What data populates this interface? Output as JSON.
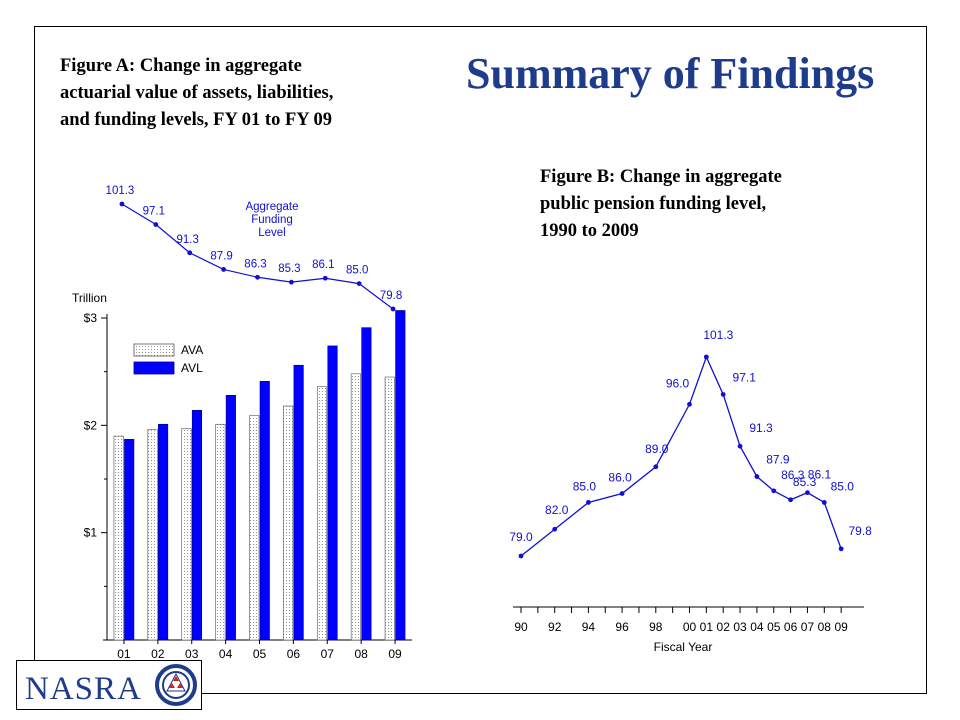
{
  "title": "Summary of Findings",
  "figure_a": {
    "caption_lines": [
      "Figure A: Change in aggregate",
      "actuarial value of assets, liabilities,",
      "and funding levels, FY 01 to FY 09"
    ]
  },
  "figure_b": {
    "caption_lines": [
      "Figure B: Change in aggregate",
      "public pension funding level,",
      "1990 to 2009"
    ]
  },
  "logo": {
    "text": "NASRA",
    "icon": "nasra-triangle-emblem-icon"
  },
  "chart_data": [
    {
      "type": "bar",
      "categories": [
        "01",
        "02",
        "03",
        "04",
        "05",
        "06",
        "07",
        "08",
        "09"
      ],
      "ylabel": "Trillion",
      "ylim": [
        0,
        3
      ],
      "yticks": [
        1,
        2,
        3
      ],
      "ytick_labels": [
        "$1",
        "$2",
        "$3"
      ],
      "series": [
        {
          "name": "AVA",
          "values": [
            1.9,
            1.96,
            1.97,
            2.01,
            2.09,
            2.18,
            2.36,
            2.48,
            2.45
          ]
        },
        {
          "name": "AVL",
          "values": [
            1.87,
            2.01,
            2.14,
            2.28,
            2.41,
            2.56,
            2.74,
            2.91,
            3.07
          ]
        }
      ],
      "legend": {
        "entries": [
          "AVA",
          "AVL"
        ],
        "placement": "top-left"
      },
      "colors": {
        "AVA": "#f2f2f2",
        "AVL": "#0000ff",
        "axis": "#000000"
      }
    },
    {
      "type": "line",
      "series": [
        {
          "name": "Aggregate Funding Level",
          "values": [
            101.3,
            97.1,
            91.3,
            87.9,
            86.3,
            85.3,
            86.1,
            85.0,
            79.8
          ]
        }
      ],
      "labels": [
        "101.3",
        "97.1",
        "91.3",
        "87.9",
        "86.3",
        "85.3",
        "86.1",
        "85.0",
        "79.8"
      ],
      "annotation": "Aggregate Funding Level",
      "colors": {
        "line": "#1010d0",
        "label": "#1010d0"
      }
    },
    {
      "type": "line",
      "x": [
        1990,
        1992,
        1994,
        1996,
        1998,
        2000,
        2001,
        2002,
        2003,
        2004,
        2005,
        2006,
        2007,
        2008,
        2009
      ],
      "y": [
        79.0,
        82.0,
        85.0,
        86.0,
        89.0,
        96.0,
        101.3,
        97.1,
        91.3,
        87.9,
        86.3,
        85.3,
        86.1,
        85.0,
        79.8
      ],
      "point_labels": [
        "79.0",
        "82.0",
        "85.0",
        "86.0",
        "89.0",
        "96.0",
        "101.3",
        "97.1",
        "91.3",
        "87.9",
        "86.3",
        "85.3",
        "86.1",
        "85.0",
        "79.8"
      ],
      "xtick_labels": [
        "90",
        "92",
        "94",
        "96",
        "98",
        "00",
        "01",
        "02",
        "03",
        "04",
        "05",
        "06",
        "07",
        "08",
        "09"
      ],
      "xlabel": "Fiscal Year",
      "colors": {
        "line": "#1010d0",
        "label": "#1010d0"
      }
    }
  ]
}
